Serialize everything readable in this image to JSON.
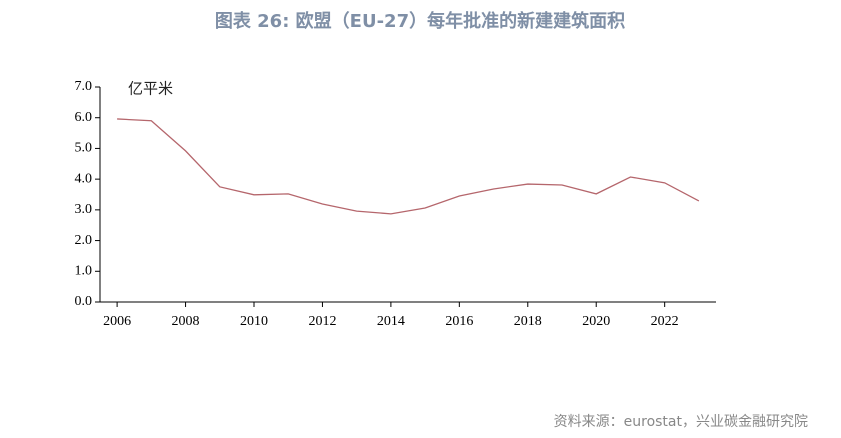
{
  "chart_data": {
    "type": "line",
    "title": "图表 26: 欧盟（EU-27）每年批准的新建建筑面积",
    "unit": "亿平米",
    "source": "资料来源：eurostat，兴业碳金融研究院",
    "x": [
      2006,
      2007,
      2008,
      2009,
      2010,
      2011,
      2012,
      2013,
      2014,
      2015,
      2016,
      2017,
      2018,
      2019,
      2020,
      2021,
      2022,
      2023
    ],
    "series": [
      {
        "name": "新建建筑面积",
        "color": "#b5666c",
        "values": [
          5.96,
          5.9,
          4.92,
          3.75,
          3.49,
          3.52,
          3.19,
          2.96,
          2.87,
          3.06,
          3.45,
          3.68,
          3.84,
          3.81,
          3.52,
          4.07,
          3.88,
          3.29
        ]
      }
    ],
    "xlim": [
      2005.5,
      2023.5
    ],
    "xticks": [
      2006,
      2008,
      2010,
      2012,
      2014,
      2016,
      2018,
      2020,
      2022
    ],
    "ylim": [
      0,
      7
    ],
    "yticks": [
      {
        "value": 0,
        "label": "0.0"
      },
      {
        "value": 1,
        "label": "1.0"
      },
      {
        "value": 2,
        "label": "2.0"
      },
      {
        "value": 3,
        "label": "3.0"
      },
      {
        "value": 4,
        "label": "4.0"
      },
      {
        "value": 5,
        "label": "5.0"
      },
      {
        "value": 6,
        "label": "6.0"
      },
      {
        "value": 7,
        "label": "7.0"
      }
    ],
    "grid": false
  }
}
